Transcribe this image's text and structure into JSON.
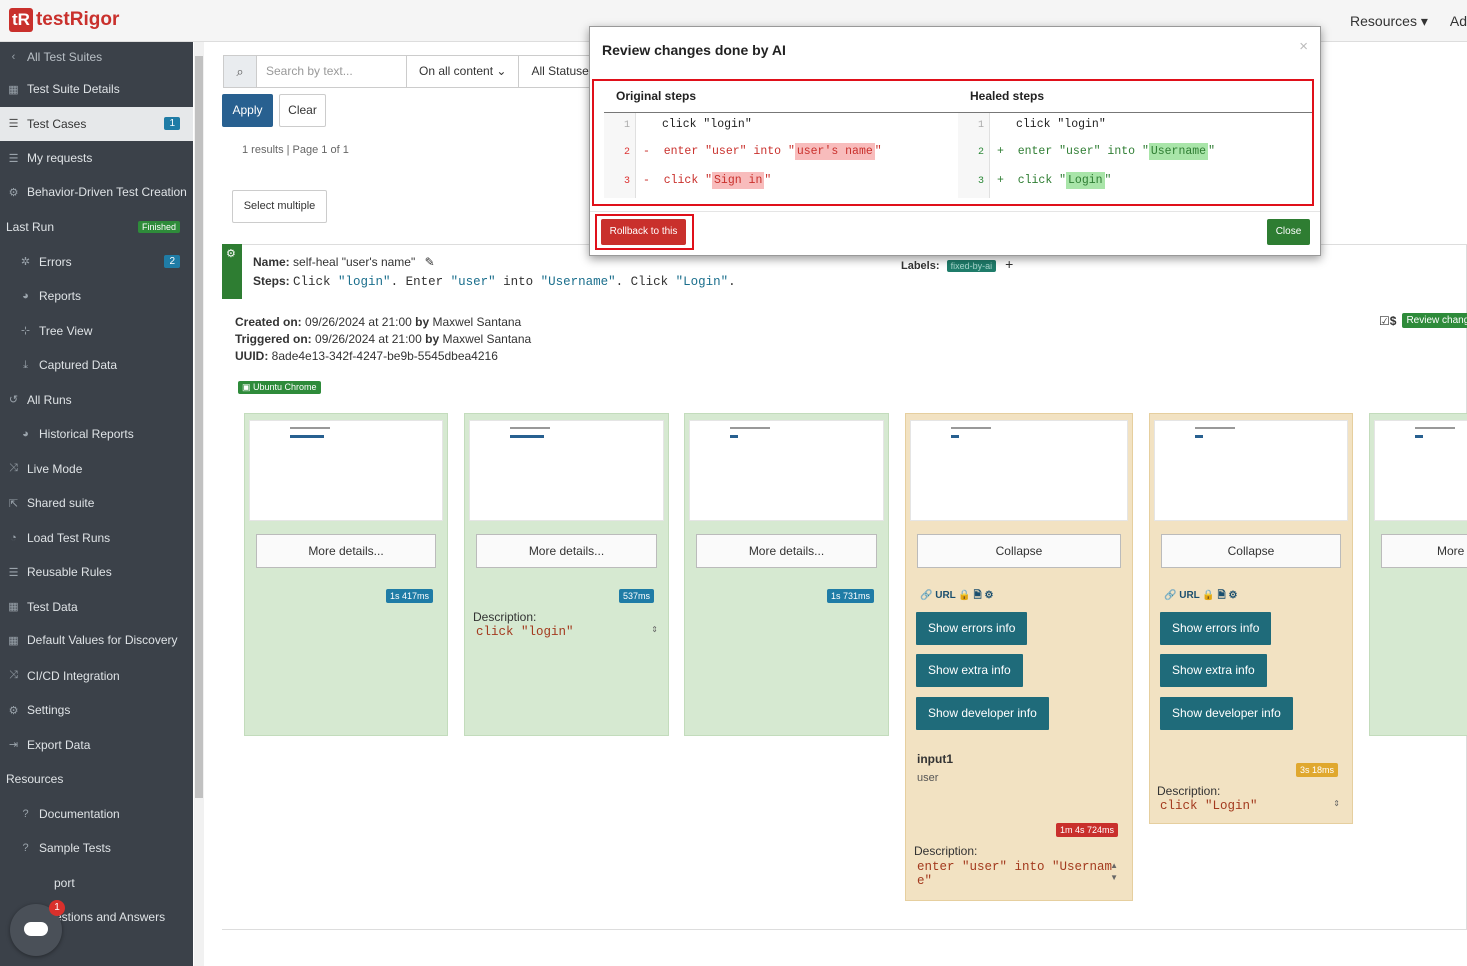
{
  "header": {
    "brand_mark": "tR",
    "brand_name": "testRigor",
    "resources": "Resources ▾",
    "ad": "Ad"
  },
  "sidebar": {
    "all_test_suites": "All Test Suites",
    "items": [
      {
        "label": "Test Suite Details",
        "icon": "table-icon"
      },
      {
        "label": "Test Cases",
        "icon": "list-icon",
        "badge": "1"
      },
      {
        "label": "My requests",
        "icon": "list-icon"
      },
      {
        "label": "Behavior-Driven Test Creation",
        "icon": "robot-icon"
      },
      {
        "label": "Last Run",
        "badge": "Finished"
      },
      {
        "label": "Errors",
        "icon": "bug-icon",
        "badge": "2"
      },
      {
        "label": "Reports",
        "icon": "pie-chart-icon"
      },
      {
        "label": "Tree View",
        "icon": "sitemap-icon"
      },
      {
        "label": "Captured Data",
        "icon": "download-icon"
      },
      {
        "label": "All Runs",
        "icon": "history-icon"
      },
      {
        "label": "Historical Reports",
        "icon": "pie-chart-icon"
      },
      {
        "label": "Live Mode",
        "icon": "shuffle-icon"
      },
      {
        "label": "Shared suite",
        "icon": "share-icon"
      },
      {
        "label": "Load Test Runs",
        "icon": "dashboard-icon"
      },
      {
        "label": "Reusable Rules",
        "icon": "list-icon"
      },
      {
        "label": "Test Data",
        "icon": "table-icon"
      },
      {
        "label": "Default Values for Discovery",
        "icon": "table-icon"
      },
      {
        "label": "CI/CD Integration",
        "icon": "shuffle-icon"
      },
      {
        "label": "Settings",
        "icon": "gears-icon"
      },
      {
        "label": "Export Data",
        "icon": "export-icon"
      },
      {
        "label": "Resources"
      },
      {
        "label": "Documentation",
        "icon": "question-icon"
      },
      {
        "label": "Sample Tests",
        "icon": "question-icon"
      },
      {
        "label": "port",
        "icon": "question-icon"
      },
      {
        "label": "Questions and Answers",
        "icon": "question-icon"
      }
    ],
    "chat_count": "1"
  },
  "filters": {
    "search_placeholder": "Search by text...",
    "content_select": "On all content",
    "status_select": "All Statuse",
    "apply": "Apply",
    "clear": "Clear",
    "results": "1 results | Page 1 of 1",
    "select_multiple": "Select multiple"
  },
  "test": {
    "name_label": "Name:",
    "name_value": "self-heal \"user's name\"",
    "steps_label": "Steps:",
    "steps_parts": [
      "Click ",
      "\"login\"",
      ". Enter ",
      "\"user\"",
      " into ",
      "\"Username\"",
      ". Click ",
      "\"Login\"",
      "."
    ],
    "labels_label": "Labels:",
    "label_tag": "fixed-by-ai",
    "created_label": "Created on:",
    "created_value": "09/26/2024 at 21:00",
    "by": "by",
    "created_by": "Maxwel Santana",
    "triggered_label": "Triggered on:",
    "triggered_value": "09/26/2024 at 21:00",
    "triggered_by": "Maxwel Santana",
    "uuid_label": "UUID:",
    "uuid_value": "8ade4e13-342f-4247-be9b-5545dbea4216",
    "browser_tag": "Ubuntu Chrome",
    "review_tag": "Review chang",
    "dollar": "$"
  },
  "steps": {
    "more_details": "More details...",
    "more": "More",
    "collapse": "Collapse",
    "url": "URL",
    "show_errors": "Show errors info",
    "show_extra": "Show extra info",
    "show_developer": "Show developer info",
    "description_label": "Description:",
    "durations": [
      "1s 417ms",
      "537ms",
      "1s 731ms",
      "1m 4s 724ms",
      "3s 18ms"
    ],
    "desc_2": "click \"login\"",
    "input_label": "input1",
    "input_value": "user",
    "desc_4_line1": "enter \"user\" into \"Usernam",
    "desc_4_line2": "e\"",
    "desc_5": "click \"Login\""
  },
  "modal": {
    "title": "Review changes done by AI",
    "close_x": "×",
    "original_heading": "Original steps",
    "healed_heading": "Healed steps",
    "line_numbers": [
      "1",
      "2",
      "3"
    ],
    "orig_1": "click \"login\"",
    "orig_2_pre": "enter \"user\" into \"",
    "orig_2_hl": "user's name",
    "orig_3_pre": "click \"",
    "orig_3_hl": "Sign in",
    "healed_1": "click \"login\"",
    "healed_2_pre": "enter \"user\" into \"",
    "healed_2_hl": "Username",
    "healed_3_pre": "click \"",
    "healed_3_hl": "Login",
    "quote": "\"",
    "minus": "-",
    "plus": "+",
    "rollback": "Rollback to this",
    "close": "Close"
  }
}
